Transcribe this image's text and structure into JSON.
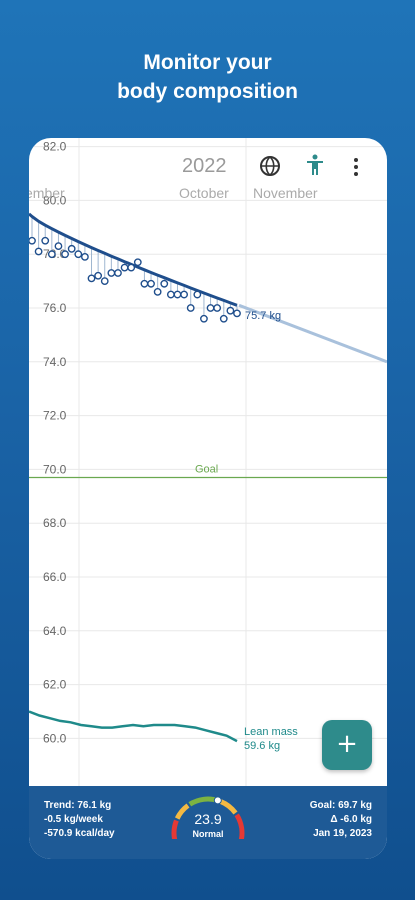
{
  "headline": {
    "line1": "Monitor your",
    "line2": "body composition"
  },
  "app_bar": {
    "year": "2022",
    "globe_icon": "globe-icon",
    "person_icon": "body-person-icon",
    "more_icon": "more-vert-icon"
  },
  "chart_data": {
    "type": "line",
    "months": [
      "ember",
      "October",
      "November"
    ],
    "y_ticks": [
      "82.0",
      "80.0",
      "78.0",
      "76.0",
      "74.0",
      "72.0",
      "70.0",
      "68.0",
      "66.0",
      "64.0",
      "62.0",
      "60.0"
    ],
    "ylim": [
      58.5,
      82.0
    ],
    "goal_label": "Goal",
    "goal_value": 69.7,
    "weight_label": "75.7 kg",
    "lean_label_line1": "Lean mass",
    "lean_label_line2": "59.6 kg",
    "trend_start": 79.4,
    "trend_end": 76.1,
    "projection_end": 74.0,
    "weights": [
      78.5,
      78.1,
      78.5,
      78.0,
      78.3,
      78.0,
      78.2,
      78.0,
      77.9,
      77.1,
      77.2,
      77.0,
      77.3,
      77.3,
      77.5,
      77.5,
      77.7,
      76.9,
      76.9,
      76.6,
      76.9,
      76.5,
      76.5,
      76.5,
      76.0,
      76.5,
      75.6,
      76.0,
      76.0,
      75.6,
      75.9,
      75.8
    ],
    "lean_mass": [
      61.0,
      60.85,
      60.75,
      60.65,
      60.6,
      60.5,
      60.45,
      60.4,
      60.4,
      60.45,
      60.5,
      60.45,
      60.5,
      60.5,
      60.5,
      60.45,
      60.4,
      60.3,
      60.2,
      60.1,
      59.9
    ]
  },
  "summary": {
    "trend": "Trend: 76.1 kg",
    "rate": "-0.5 kg/week",
    "energy": "-570.9 kcal/day",
    "bmi_value": "23.9",
    "bmi_category": "Normal",
    "bmi_fraction": 0.58,
    "goal": "Goal: 69.7 kg",
    "delta": "Δ -6.0 kg",
    "goal_date": "Jan 19, 2023"
  },
  "fab": {
    "label": "+"
  },
  "colors": {
    "weight": "#1f4e8c",
    "projection": "#a9c1dc",
    "lean": "#1f8a8a",
    "goal": "#6aa84f",
    "grid": "#e8e8e8",
    "fab": "#2e8b8b"
  }
}
